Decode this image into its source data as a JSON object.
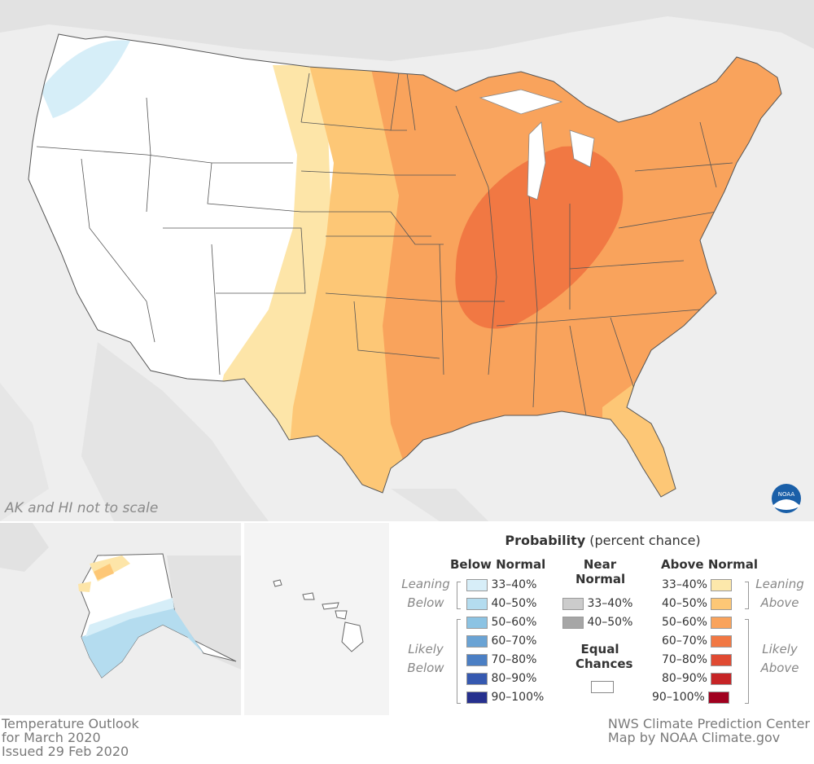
{
  "map": {
    "note": "AK and HI not to scale",
    "logo_text": "NOAA",
    "colors": {
      "land": "#ffffff",
      "background": "#eeeeee",
      "below_33_40": "#d6eef8",
      "leaning_above": "#fde5a8",
      "above_40_50": "#fdc776",
      "above_50_60": "#f9a35c",
      "above_60_70": "#f17843",
      "logo": "#1a5fa8"
    }
  },
  "legend": {
    "title_bold": "Probability",
    "title_rest": "(percent chance)",
    "below_head": "Below Normal",
    "near_head": "Near",
    "near_head2": "Normal",
    "above_head": "Above Normal",
    "leaning": "Leaning",
    "below": "Below",
    "above": "Above",
    "likely": "Likely",
    "equal": "Equal",
    "chances": "Chances",
    "below_rows": [
      {
        "label": "33–40%",
        "color": "#d7eef8"
      },
      {
        "label": "40–50%",
        "color": "#b4dcef"
      },
      {
        "label": "50–60%",
        "color": "#8cc3e3"
      },
      {
        "label": "60–70%",
        "color": "#6aa3d4"
      },
      {
        "label": "70–80%",
        "color": "#4b7fc4"
      },
      {
        "label": "80–90%",
        "color": "#3659b0"
      },
      {
        "label": "90–100%",
        "color": "#26308e"
      }
    ],
    "near_rows": [
      {
        "label": "33–40%",
        "color": "#cccccc"
      },
      {
        "label": "40–50%",
        "color": "#a6a6a6"
      }
    ],
    "above_rows": [
      {
        "label": "33–40%",
        "color": "#fde8ab"
      },
      {
        "label": "40–50%",
        "color": "#fdc776"
      },
      {
        "label": "50–60%",
        "color": "#f9a35c"
      },
      {
        "label": "60–70%",
        "color": "#f17843"
      },
      {
        "label": "70–80%",
        "color": "#e04a32"
      },
      {
        "label": "80–90%",
        "color": "#c62426"
      },
      {
        "label": "90–100%",
        "color": "#a0001f"
      }
    ]
  },
  "footer": {
    "left": [
      "Temperature Outlook",
      "for March 2020",
      "Issued 29 Feb 2020"
    ],
    "right": [
      "NWS Climate Prediction Center",
      "Map by NOAA Climate.gov"
    ]
  }
}
